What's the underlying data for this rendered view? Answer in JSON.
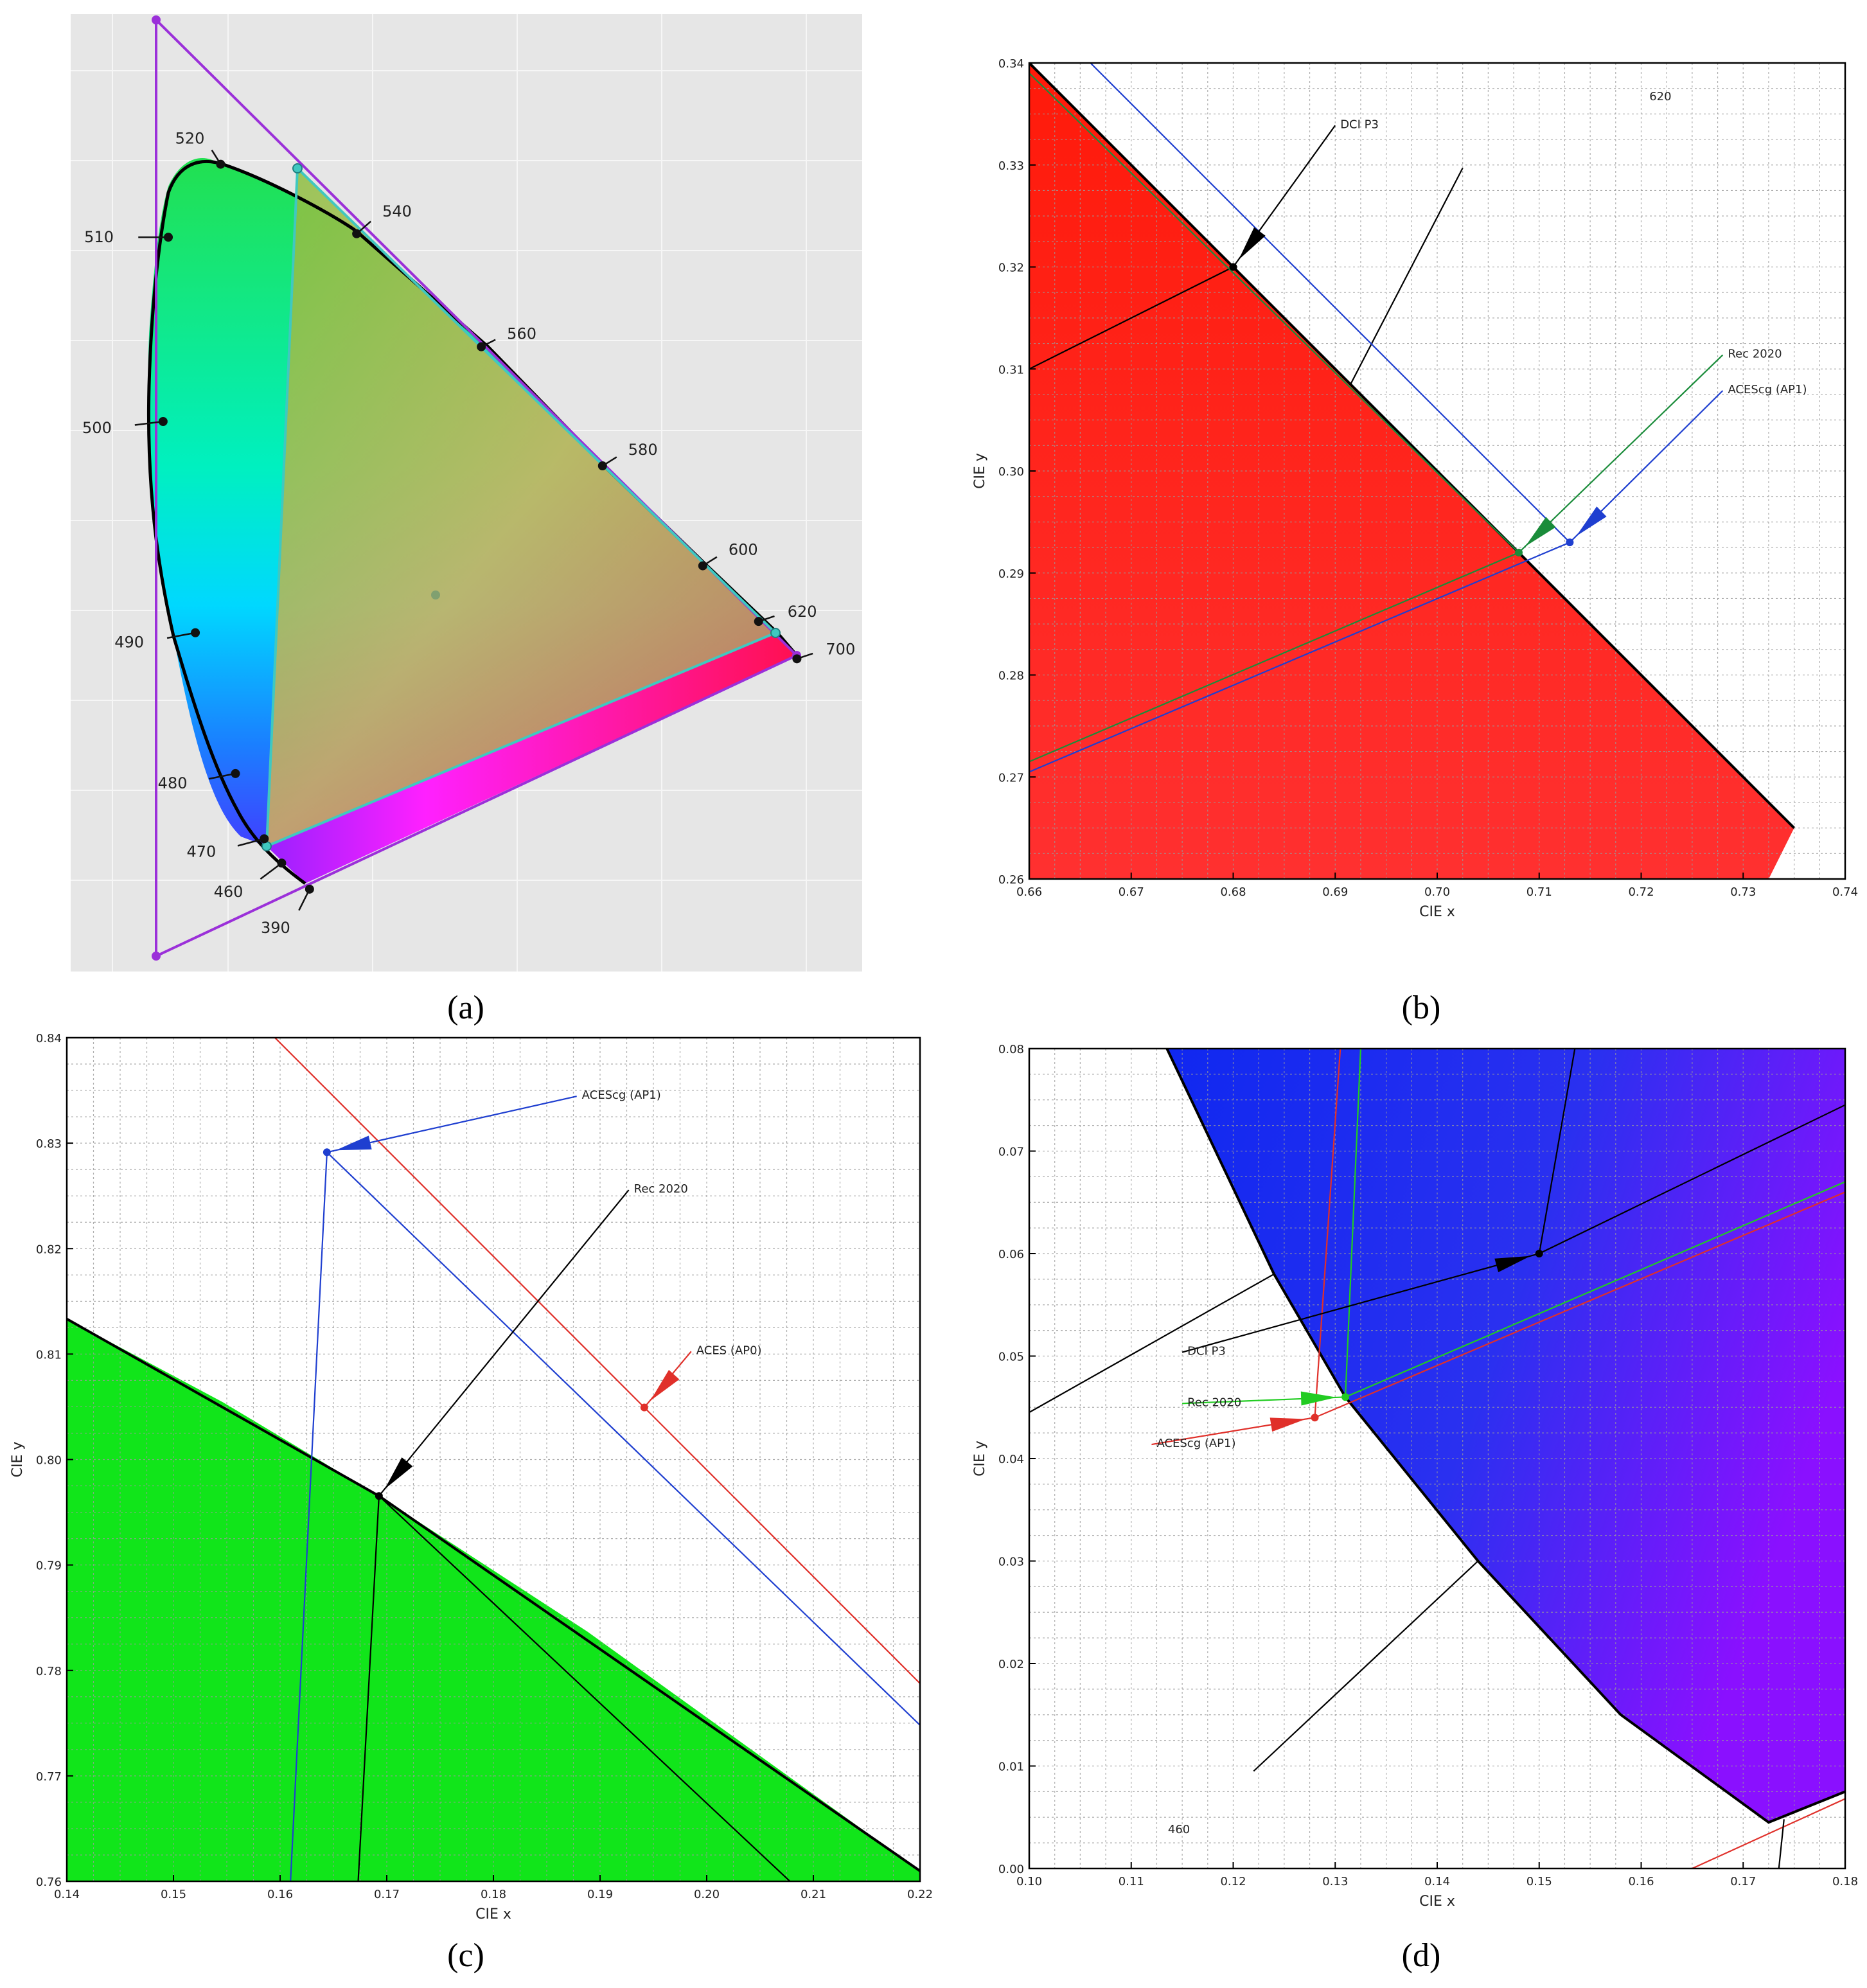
{
  "panels": [
    {
      "caption": "(a)",
      "chart_data": {
        "type": "scatter",
        "description_free": true,
        "spectral_locus_labels": [
          {
            "nm": "390",
            "x": 0.176,
            "y": -0.0
          },
          {
            "nm": "460",
            "x": 0.144,
            "y": 0.03
          },
          {
            "nm": "470",
            "x": 0.124,
            "y": 0.058
          },
          {
            "nm": "480",
            "x": 0.091,
            "y": 0.133
          },
          {
            "nm": "490",
            "x": 0.045,
            "y": 0.295
          },
          {
            "nm": "500",
            "x": 0.008,
            "y": 0.538
          },
          {
            "nm": "510",
            "x": 0.014,
            "y": 0.75
          },
          {
            "nm": "520",
            "x": 0.074,
            "y": 0.834
          },
          {
            "nm": "540",
            "x": 0.23,
            "y": 0.754
          },
          {
            "nm": "560",
            "x": 0.373,
            "y": 0.624
          },
          {
            "nm": "580",
            "x": 0.512,
            "y": 0.487
          },
          {
            "nm": "600",
            "x": 0.627,
            "y": 0.372
          },
          {
            "nm": "620",
            "x": 0.691,
            "y": 0.308
          },
          {
            "nm": "700",
            "x": 0.735,
            "y": 0.265
          }
        ],
        "gamuts": [
          {
            "name": "ACES (AP0)",
            "color": "#9b30d9",
            "points": [
              [
                0.7347,
                0.2653
              ],
              [
                0.0,
                1.0
              ],
              [
                0.0001,
                -0.077
              ]
            ]
          },
          {
            "name": "ACEScg (AP1)",
            "color": "#40c8c0",
            "points": [
              [
                0.713,
                0.293
              ],
              [
                0.165,
                0.83
              ],
              [
                0.128,
                0.044
              ]
            ]
          }
        ],
        "white_point": {
          "x": 0.32168,
          "y": 0.33767
        }
      }
    },
    {
      "caption": "(b)",
      "chart_data": {
        "type": "line",
        "xlabel": "CIE x",
        "ylabel": "CIE y",
        "xlim": [
          0.66,
          0.74
        ],
        "ylim": [
          0.26,
          0.34
        ],
        "xticks": [
          "0.66",
          "0.67",
          "0.68",
          "0.69",
          "0.70",
          "0.71",
          "0.72",
          "0.73",
          "0.74"
        ],
        "yticks": [
          "0.26",
          "0.27",
          "0.28",
          "0.29",
          "0.30",
          "0.31",
          "0.32",
          "0.33",
          "0.34"
        ],
        "fill_color": "#ff2a14",
        "corner_label": "620",
        "annotations": [
          {
            "text": "DCI P3",
            "point": [
              0.68,
              0.32
            ],
            "text_at": [
              0.6905,
              0.334
            ],
            "color": "#000000"
          },
          {
            "text": "Rec 2020",
            "point": [
              0.708,
              0.292
            ],
            "text_at": [
              0.7285,
              0.3115
            ],
            "color": "#1a8c3a"
          },
          {
            "text": "ACEScg (AP1)",
            "point": [
              0.713,
              0.293
            ],
            "text_at": [
              0.7285,
              0.308
            ],
            "color": "#1f3fd0"
          }
        ],
        "series": [
          {
            "name": "spectral locus",
            "color": "#000000",
            "points": [
              [
                0.66,
                0.34
              ],
              [
                0.735,
                0.265
              ]
            ]
          },
          {
            "name": "DCI P3 edge",
            "color": "#000000",
            "points": [
              [
                0.66,
                0.31
              ],
              [
                0.68,
                0.32
              ],
              [
                0.6915,
                0.3085
              ],
              [
                0.7025,
                0.3297
              ]
            ]
          },
          {
            "name": "Rec 2020",
            "color": "#1a8c3a",
            "points": [
              [
                0.66,
                0.2715
              ],
              [
                0.708,
                0.292
              ],
              [
                0.66,
                0.339
              ]
            ]
          },
          {
            "name": "ACEScg (AP1)",
            "color": "#1f3fd0",
            "points": [
              [
                0.66,
                0.2705
              ],
              [
                0.713,
                0.293
              ],
              [
                0.666,
                0.34
              ]
            ]
          }
        ]
      }
    },
    {
      "caption": "(c)",
      "chart_data": {
        "type": "line",
        "xlabel": "CIE x",
        "ylabel": "CIE y",
        "xlim": [
          0.14,
          0.222
        ],
        "ylim": [
          0.76,
          0.841
        ],
        "xticks": [
          "0.14",
          "0.15",
          "0.16",
          "0.17",
          "0.18",
          "0.19",
          "0.20",
          "0.21",
          "0.22"
        ],
        "yticks": [
          "0.76",
          "0.77",
          "0.78",
          "0.79",
          "0.80",
          "0.81",
          "0.82",
          "0.83",
          "0.84"
        ],
        "fill_color": "#11e51a",
        "annotations": [
          {
            "text": "ACEScg (AP1)",
            "point": [
              0.165,
              0.83
            ],
            "text_at": [
              0.1895,
              0.8355
            ],
            "color": "#1f3fd0"
          },
          {
            "text": "Rec 2020",
            "point": [
              0.17,
              0.797
            ],
            "text_at": [
              0.1945,
              0.8265
            ],
            "color": "#000000"
          },
          {
            "text": "ACES (AP0)",
            "point": [
              0.1955,
              0.8055
            ],
            "text_at": [
              0.2005,
              0.811
            ],
            "color": "#e0302a"
          }
        ],
        "series": [
          {
            "name": "spectral locus",
            "color": "#000000",
            "points": [
              [
                0.14,
                0.814
              ],
              [
                0.17,
                0.797
              ],
              [
                0.222,
                0.761
              ]
            ]
          },
          {
            "name": "Rec 2020",
            "color": "#000000",
            "points": [
              [
                0.168,
                0.76
              ],
              [
                0.17,
                0.797
              ],
              [
                0.2095,
                0.76
              ]
            ]
          },
          {
            "name": "ACEScg (AP1)",
            "color": "#1f3fd0",
            "points": [
              [
                0.1615,
                0.76
              ],
              [
                0.165,
                0.83
              ],
              [
                0.222,
                0.775
              ]
            ]
          },
          {
            "name": "ACES (AP0)",
            "color": "#e0302a",
            "points": [
              [
                0.1595,
                0.8415
              ],
              [
                0.222,
                0.779
              ]
            ]
          }
        ]
      }
    },
    {
      "caption": "(d)",
      "chart_data": {
        "type": "line",
        "xlabel": "CIE x",
        "ylabel": "CIE y",
        "xlim": [
          0.1,
          0.18
        ],
        "ylim": [
          0.0,
          0.08
        ],
        "xticks": [
          "0.10",
          "0.11",
          "0.12",
          "0.13",
          "0.14",
          "0.15",
          "0.16",
          "0.17",
          "0.18"
        ],
        "yticks": [
          "0.00",
          "0.01",
          "0.02",
          "0.03",
          "0.04",
          "0.05",
          "0.06",
          "0.07",
          "0.08"
        ],
        "fill_color": "#1a2cf0",
        "corner_label": "460",
        "annotations": [
          {
            "text": "DCI P3",
            "point": [
              0.15,
              0.06
            ],
            "text_at": [
              0.1155,
              0.0505
            ],
            "color": "#000000"
          },
          {
            "text": "Rec 2020",
            "point": [
              0.131,
              0.046
            ],
            "text_at": [
              0.1155,
              0.0455
            ],
            "color": "#22cc22"
          },
          {
            "text": "ACEScg (AP1)",
            "point": [
              0.128,
              0.044
            ],
            "text_at": [
              0.1125,
              0.0415
            ],
            "color": "#e0302a"
          }
        ],
        "series": [
          {
            "name": "spectral locus",
            "color": "#000000",
            "points": [
              [
                0.1135,
                0.08
              ],
              [
                0.124,
                0.058
              ],
              [
                0.131,
                0.046
              ],
              [
                0.144,
                0.03
              ],
              [
                0.158,
                0.015
              ],
              [
                0.1725,
                0.0045
              ],
              [
                0.18,
                0.0075
              ]
            ]
          },
          {
            "name": "DCI P3",
            "color": "#000000",
            "points": [
              [
                0.1,
                0.0445
              ],
              [
                0.124,
                0.058
              ]
            ]
          },
          {
            "name": "DCI P3 triangle",
            "color": "#000000",
            "points": [
              [
                0.1535,
                0.08
              ],
              [
                0.15,
                0.06
              ],
              [
                0.18,
                0.0745
              ]
            ]
          },
          {
            "name": "Rec 2020",
            "color": "#22cc22",
            "points": [
              [
                0.1325,
                0.08
              ],
              [
                0.131,
                0.046
              ],
              [
                0.18,
                0.067
              ]
            ]
          },
          {
            "name": "ACEScg (AP1)",
            "color": "#e0302a",
            "points": [
              [
                0.1305,
                0.08
              ],
              [
                0.128,
                0.044
              ],
              [
                0.18,
                0.066
              ]
            ]
          },
          {
            "name": "ACES (AP0)",
            "color": "#e0302a",
            "points": [
              [
                0.165,
                0.0
              ],
              [
                0.18,
                0.0068
              ]
            ]
          },
          {
            "name": "blue tangent",
            "color": "#000000",
            "points": [
              [
                0.122,
                0.0095
              ],
              [
                0.144,
                0.03
              ]
            ]
          },
          {
            "name": "locus end",
            "color": "#000000",
            "points": [
              [
                0.1735,
                0.0
              ],
              [
                0.174,
                0.0048
              ]
            ]
          }
        ]
      }
    }
  ]
}
